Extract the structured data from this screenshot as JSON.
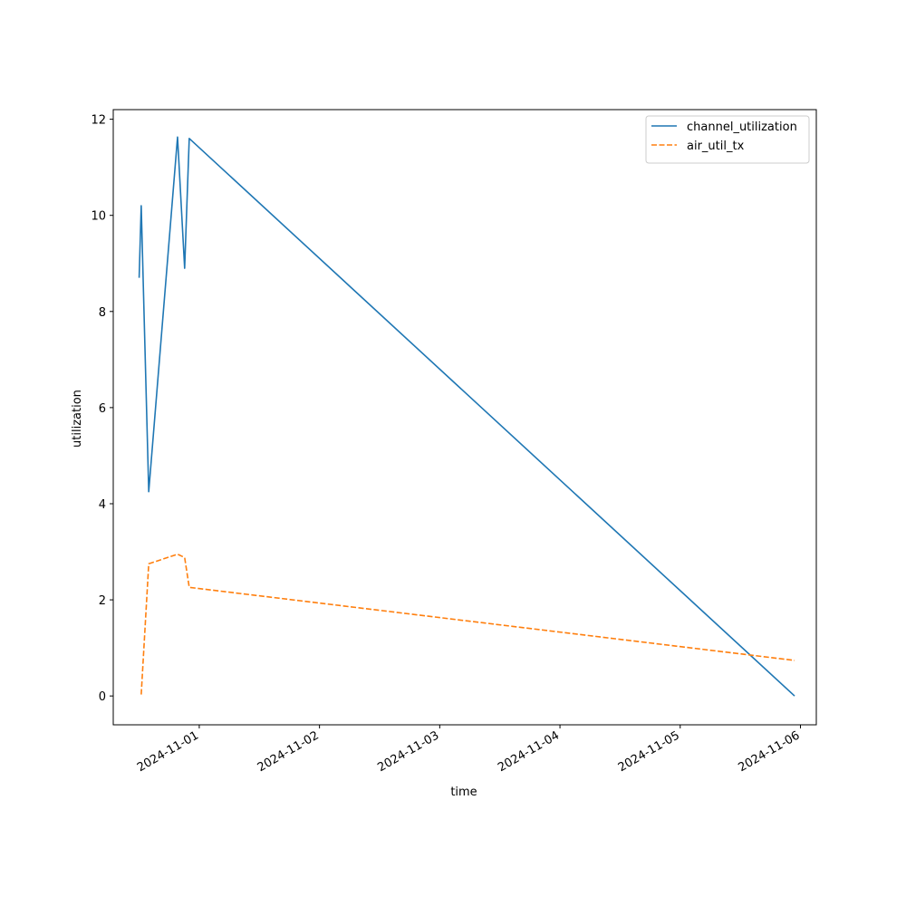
{
  "chart_data": {
    "type": "line",
    "title": "",
    "xlabel": "time",
    "ylabel": "utilization",
    "x_tick_labels": [
      "2024-11-01",
      "2024-11-02",
      "2024-11-03",
      "2024-11-04",
      "2024-11-05",
      "2024-11-06"
    ],
    "y_ticks": [
      0,
      2,
      4,
      6,
      8,
      10,
      12
    ],
    "xlim": [
      "2024-10-31 06:50",
      "2024-11-06 03:10"
    ],
    "ylim": [
      -0.6,
      12.2
    ],
    "grid": false,
    "legend_position": "top-right",
    "x": [
      "2024-10-31 12:00",
      "2024-10-31 12:25",
      "2024-10-31 13:55",
      "2024-10-31 19:40",
      "2024-10-31 21:05",
      "2024-10-31 22:00",
      "2024-11-05 22:50"
    ],
    "series": [
      {
        "name": "channel_utilization",
        "color": "#1f77b4",
        "dash": "solid",
        "values": [
          8.7,
          10.2,
          4.25,
          11.63,
          8.9,
          11.6,
          0.0
        ]
      },
      {
        "name": "air_util_tx",
        "color": "#ff7f0e",
        "dash": "dashed",
        "values": [
          null,
          0.03,
          2.75,
          2.95,
          2.88,
          2.26,
          0.74
        ]
      }
    ]
  }
}
